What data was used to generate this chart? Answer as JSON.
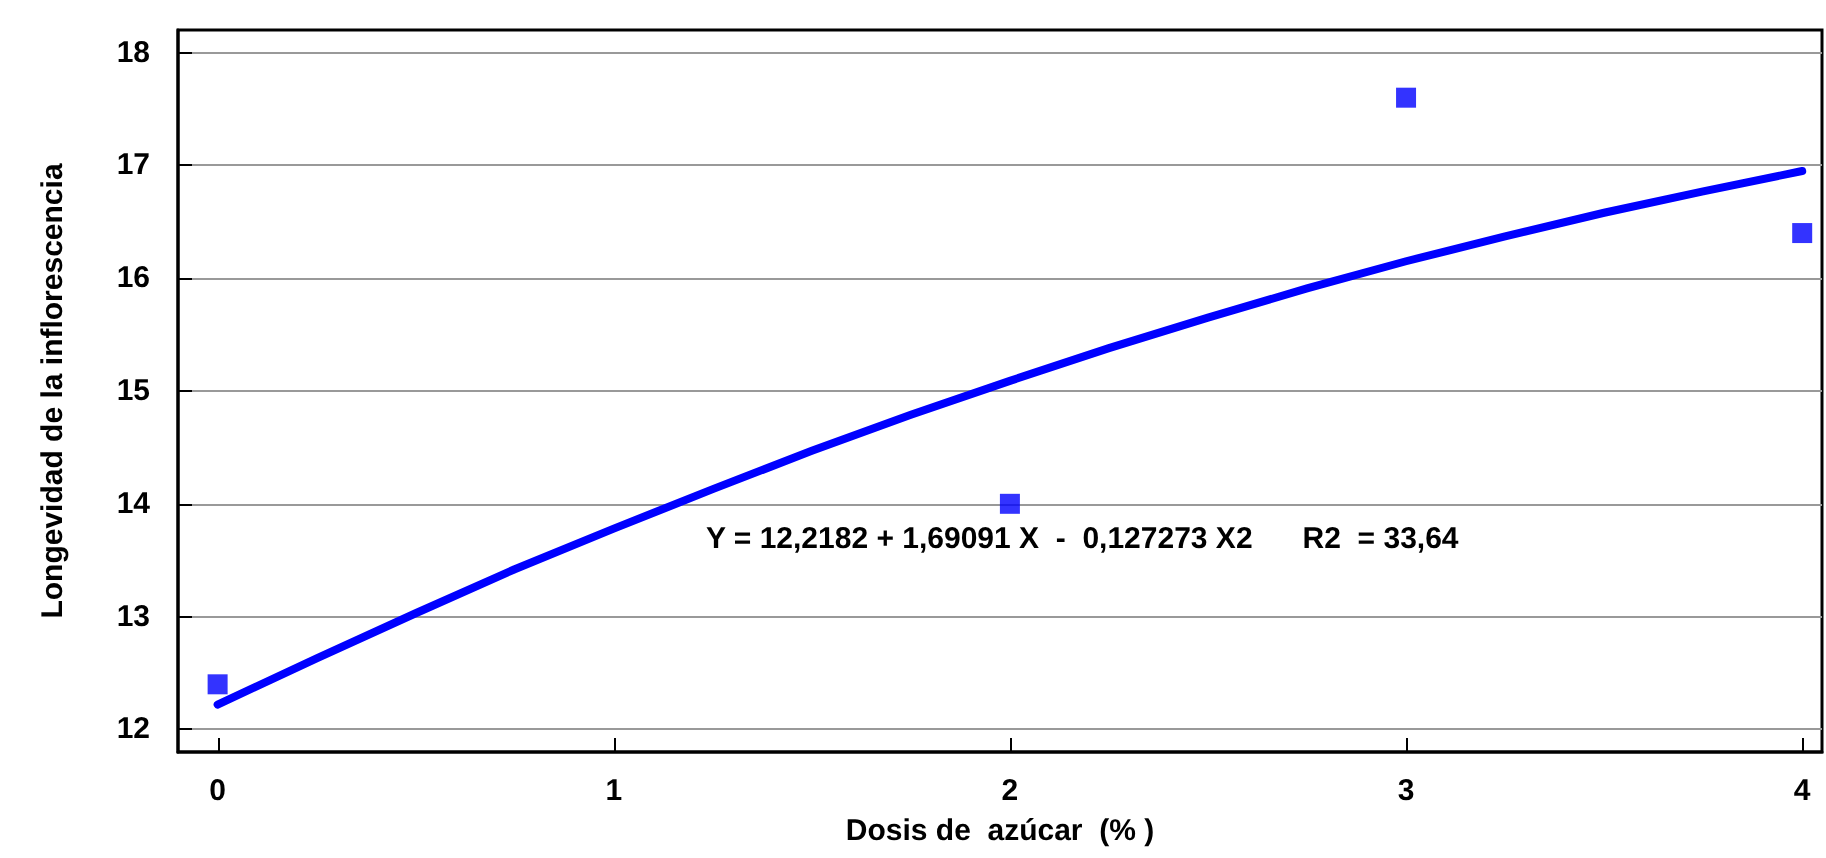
{
  "chart_data": {
    "type": "scatter",
    "xlabel": "Dosis de  azúcar  (% )",
    "ylabel": "Longevidad de la inflorescencia",
    "xlim": [
      -0.1,
      4.05
    ],
    "ylim": [
      11.8,
      18.2
    ],
    "xticks": [
      0,
      1,
      2,
      3,
      4
    ],
    "yticks": [
      12,
      13,
      14,
      15,
      16,
      17,
      18
    ],
    "grid": "y",
    "marker": "square",
    "annotations": [
      "Y = 12,2182 + 1,69091 X  -  0,127273 X2      R2  = 33,64"
    ],
    "series": [
      {
        "color": "#0000ff",
        "x": [
          0,
          2,
          3,
          4
        ],
        "values": [
          12.4,
          14.0,
          17.6,
          16.4
        ]
      },
      {
        "type": "line",
        "color": "#0000ff",
        "marker": "none",
        "line_style": "solid",
        "x": [
          0,
          0.25,
          0.5,
          0.75,
          1,
          1.25,
          1.5,
          1.75,
          2,
          2.25,
          2.5,
          2.75,
          3,
          3.25,
          3.5,
          3.75,
          4
        ],
        "values": [
          12.22,
          12.63,
          13.03,
          13.42,
          13.78,
          14.13,
          14.47,
          14.79,
          15.09,
          15.38,
          15.65,
          15.91,
          16.15,
          16.37,
          16.58,
          16.77,
          16.95
        ]
      }
    ]
  }
}
